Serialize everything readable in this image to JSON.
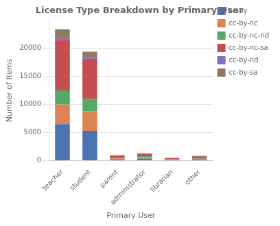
{
  "chart_data": {
    "type": "bar",
    "title": "License Type Breakdown by Primary User",
    "xlabel": "Primary User",
    "ylabel": "Number of Items",
    "categories": [
      "teacher",
      "student",
      "parent",
      "administrator",
      "librarian",
      "other"
    ],
    "series": [
      {
        "name": "cc-by",
        "color": "#4C72B0",
        "values": [
          6500,
          5300,
          200,
          350,
          150,
          180
        ]
      },
      {
        "name": "cc-by-nc",
        "color": "#DD8452",
        "values": [
          3500,
          3500,
          200,
          250,
          80,
          100
        ]
      },
      {
        "name": "cc-by-nc-nd",
        "color": "#55A868",
        "values": [
          2500,
          2200,
          150,
          200,
          50,
          80
        ]
      },
      {
        "name": "cc-by-nc-sa",
        "color": "#C44E52",
        "values": [
          9000,
          7000,
          300,
          400,
          150,
          400
        ]
      },
      {
        "name": "cc-by-nd",
        "color": "#8172B3",
        "values": [
          300,
          300,
          60,
          60,
          30,
          50
        ]
      },
      {
        "name": "cc-by-sa",
        "color": "#937860",
        "values": [
          1600,
          1100,
          60,
          60,
          30,
          50
        ]
      }
    ],
    "stacked": true,
    "ylim": [
      0,
      25000
    ],
    "yticks": [
      0,
      5000,
      10000,
      15000,
      20000
    ],
    "grid": true,
    "legend": "upper right"
  }
}
